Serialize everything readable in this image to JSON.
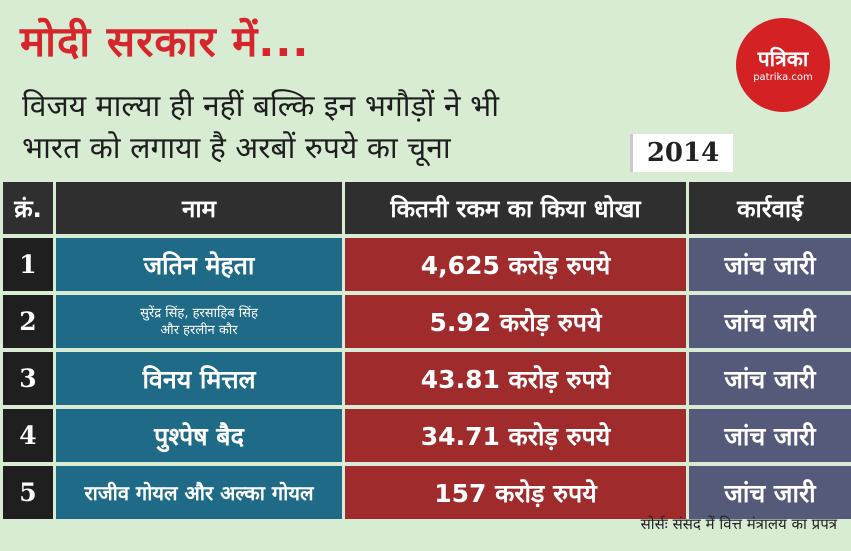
{
  "header": {
    "title": "मोदी सरकार में...",
    "subtitle_line1": "विजय माल्या ही नहीं बल्कि इन भगौड़ों ने भी",
    "subtitle_line2": "भारत को लगाया है अरबों रुपये का चूना",
    "year": "2014"
  },
  "logo": {
    "main": "पत्रिका",
    "sub": "patrika.com",
    "color": "#d42224"
  },
  "table": {
    "headers": {
      "sn": "क्रं.",
      "name": "नाम",
      "amount": "कितनी रकम का किया धोखा",
      "action": "कार्रवाई"
    },
    "rows": [
      {
        "sn": "1",
        "name": "जतिन मेहता",
        "amount": "4,625 करोड़ रुपये",
        "action": "जांच जारी"
      },
      {
        "sn": "2",
        "name_line1": "सुरेंद्र सिंह, हरसाहिब सिंह",
        "name_line2": "और हरलीन कौर",
        "amount": "5.92 करोड़ रुपये",
        "action": "जांच जारी"
      },
      {
        "sn": "3",
        "name": "विनय मित्तल",
        "amount": "43.81 करोड़ रुपये",
        "action": "जांच जारी"
      },
      {
        "sn": "4",
        "name": "पुश्पेष बैद",
        "amount": "34.71 करोड़ रुपये",
        "action": "जांच जारी"
      },
      {
        "sn": "5",
        "name": "राजीव गोयल और अल्का गोयल",
        "amount": "157 करोड़ रुपये",
        "action": "जांच जारी"
      }
    ]
  },
  "footer": {
    "source": "सोर्सः संसद में वित्त मंत्रालय का प्रपत्र"
  },
  "colors": {
    "title": "#d6262b",
    "background": "#d8ecd4",
    "name_column": "#1f6a87",
    "amount_column": "#a02b2d",
    "action_column": "#555a7a",
    "header_text": "#ffe44d"
  }
}
